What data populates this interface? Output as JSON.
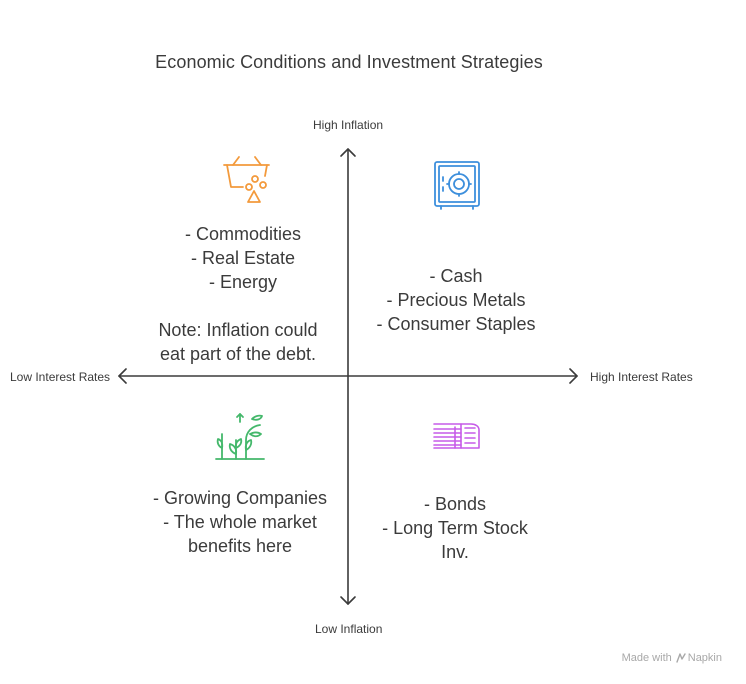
{
  "title": "Economic Conditions and Investment Strategies",
  "axes": {
    "top": "High Inflation",
    "bottom": "Low Inflation",
    "left": "Low Interest Rates",
    "right": "High Interest Rates"
  },
  "quadrants": {
    "top_left": {
      "icon": "shopping-basket-icon",
      "color": "#f39a3c",
      "lines": [
        "- Commodities",
        "- Real Estate",
        "- Energy"
      ],
      "note": [
        "Note: Inflation could",
        "eat part of the debt."
      ]
    },
    "top_right": {
      "icon": "safe-icon",
      "color": "#3d8fdc",
      "lines": [
        "- Cash",
        "- Precious Metals",
        "- Consumer Staples"
      ]
    },
    "bottom_left": {
      "icon": "growing-plant-icon",
      "color": "#44b86b",
      "lines": [
        "- Growing Companies",
        "- The whole market",
        "benefits here"
      ]
    },
    "bottom_right": {
      "icon": "money-stack-icon",
      "color": "#c65be8",
      "lines": [
        "- Bonds",
        "- Long Term Stock",
        "Inv."
      ]
    }
  },
  "watermark": {
    "prefix": "Made with",
    "brand": "Napkin"
  }
}
